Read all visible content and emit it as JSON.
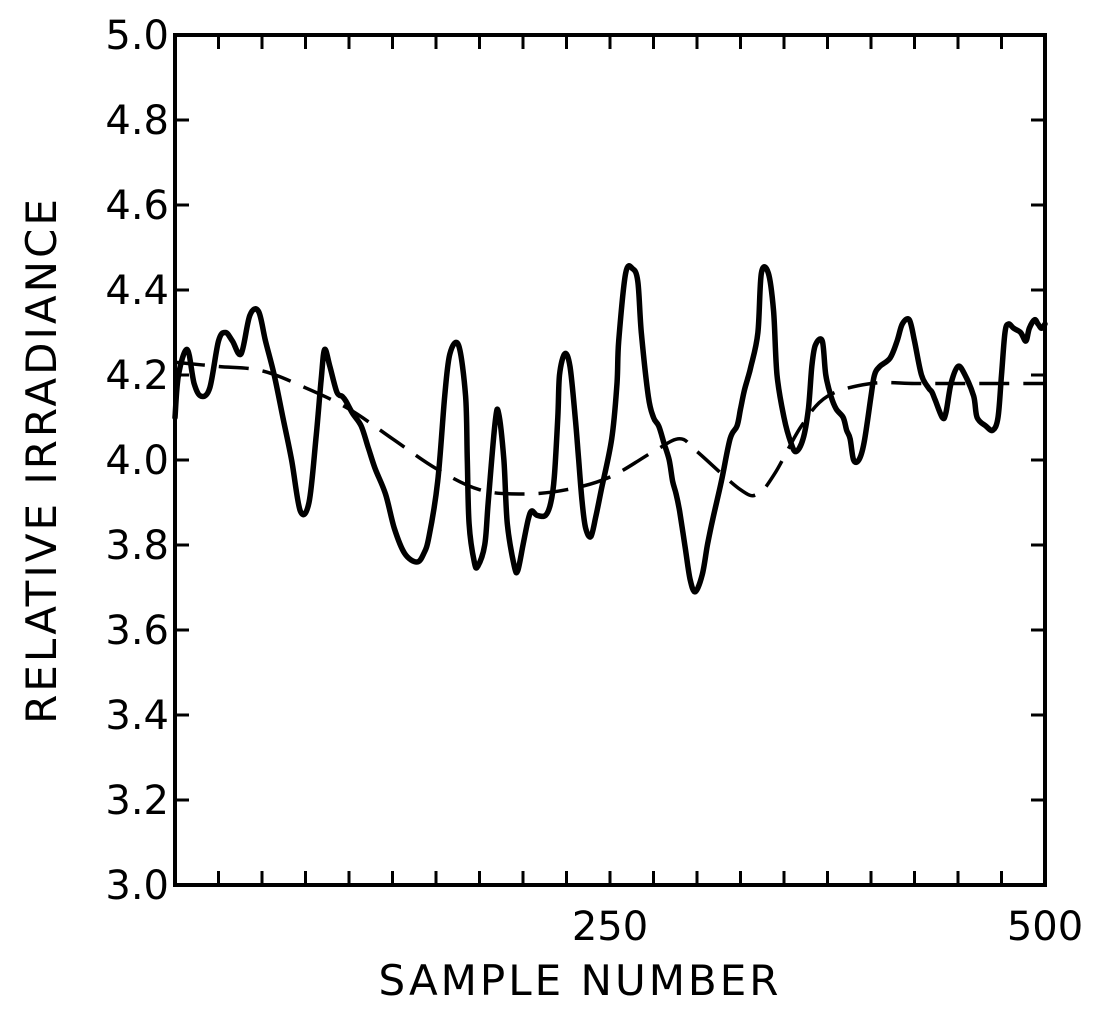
{
  "chart_data": {
    "type": "line",
    "title": "",
    "xlabel": "SAMPLE NUMBER",
    "ylabel": "RELATIVE  IRRADIANCE",
    "xlim": [
      0,
      500
    ],
    "ylim": [
      3.0,
      5.0
    ],
    "x_ticks": [
      0,
      25,
      50,
      75,
      100,
      125,
      150,
      175,
      200,
      225,
      250,
      275,
      300,
      325,
      350,
      375,
      400,
      425,
      450,
      475,
      500
    ],
    "x_tick_labels": [
      {
        "value": 250,
        "label": "250"
      },
      {
        "value": 500,
        "label": "500"
      }
    ],
    "y_ticks": [
      3.0,
      3.2,
      3.4,
      3.6,
      3.8,
      4.0,
      4.2,
      4.4,
      4.6,
      4.8,
      5.0
    ],
    "y_tick_labels": [
      "3.0",
      "3.2",
      "3.4",
      "3.6",
      "3.8",
      "4.0",
      "4.2",
      "4.4",
      "4.6",
      "4.8",
      "5.0"
    ],
    "grid": false,
    "series": [
      {
        "style": "solid",
        "color": "#000000",
        "x": [
          0,
          2,
          7,
          11,
          15,
          20,
          25,
          29,
          33,
          38,
          43,
          48,
          52,
          57,
          62,
          67,
          72,
          77,
          81,
          84,
          86,
          89,
          93,
          96,
          98,
          102,
          107,
          111,
          115,
          121,
          126,
          132,
          139,
          143,
          146,
          151,
          155,
          158,
          163,
          167,
          168,
          169,
          172,
          174,
          178,
          180,
          184,
          186,
          189,
          191,
          195,
          197,
          200,
          203,
          205,
          208,
          213,
          216,
          218,
          220,
          221,
          224,
          227,
          230,
          232,
          234,
          236,
          239,
          242,
          245,
          251,
          254,
          255,
          259,
          263,
          266,
          268,
          272,
          275,
          278,
          281,
          284,
          286,
          288,
          290,
          293,
          296,
          299,
          303,
          306,
          309,
          314,
          319,
          323,
          325,
          327,
          329,
          331,
          335,
          337,
          341,
          344,
          346,
          350,
          354,
          357,
          361,
          364,
          366,
          368,
          372,
          374,
          377,
          380,
          384,
          386,
          388,
          390,
          393,
          396,
          400,
          402,
          405,
          411,
          415,
          418,
          422,
          425,
          429,
          433,
          435,
          437,
          441,
          443,
          446,
          450,
          454,
          459,
          461,
          466,
          470,
          473,
          475,
          477,
          479,
          482,
          486,
          489,
          491,
          494,
          496,
          498,
          500
        ],
        "y": [
          4.1,
          4.2,
          4.26,
          4.18,
          4.15,
          4.17,
          4.28,
          4.3,
          4.28,
          4.25,
          4.34,
          4.35,
          4.28,
          4.2,
          4.1,
          4.0,
          3.88,
          3.9,
          4.05,
          4.19,
          4.26,
          4.22,
          4.16,
          4.15,
          4.14,
          4.11,
          4.08,
          4.03,
          3.98,
          3.92,
          3.84,
          3.78,
          3.76,
          3.78,
          3.82,
          3.95,
          4.15,
          4.25,
          4.27,
          4.15,
          4.0,
          3.85,
          3.76,
          3.75,
          3.8,
          3.9,
          4.09,
          4.11,
          4.0,
          3.85,
          3.75,
          3.74,
          3.8,
          3.86,
          3.88,
          3.87,
          3.87,
          3.9,
          3.96,
          4.1,
          4.2,
          4.25,
          4.22,
          4.1,
          4.0,
          3.9,
          3.84,
          3.82,
          3.87,
          3.93,
          4.05,
          4.18,
          4.28,
          4.44,
          4.45,
          4.42,
          4.3,
          4.15,
          4.1,
          4.08,
          4.04,
          4.0,
          3.95,
          3.92,
          3.88,
          3.8,
          3.72,
          3.69,
          3.73,
          3.8,
          3.86,
          3.95,
          4.05,
          4.08,
          4.12,
          4.16,
          4.19,
          4.22,
          4.3,
          4.44,
          4.44,
          4.35,
          4.2,
          4.1,
          4.04,
          4.02,
          4.05,
          4.12,
          4.22,
          4.27,
          4.28,
          4.2,
          4.15,
          4.12,
          4.1,
          4.07,
          4.05,
          4.0,
          4.0,
          4.04,
          4.15,
          4.2,
          4.22,
          4.24,
          4.28,
          4.32,
          4.33,
          4.28,
          4.2,
          4.17,
          4.16,
          4.14,
          4.1,
          4.11,
          4.18,
          4.22,
          4.2,
          4.15,
          4.1,
          4.08,
          4.07,
          4.1,
          4.2,
          4.3,
          4.32,
          4.31,
          4.3,
          4.28,
          4.31,
          4.33,
          4.32,
          4.31,
          4.32
        ]
      },
      {
        "style": "dashed",
        "color": "#000000",
        "x": [
          0,
          25,
          50,
          75,
          100,
          125,
          150,
          175,
          200,
          225,
          250,
          275,
          290,
          300,
          325,
          335,
          345,
          360,
          375,
          400,
          425,
          450,
          475,
          500
        ],
        "y": [
          4.23,
          4.22,
          4.21,
          4.17,
          4.12,
          4.05,
          3.98,
          3.93,
          3.92,
          3.93,
          3.96,
          4.02,
          4.05,
          4.02,
          3.93,
          3.92,
          3.97,
          4.08,
          4.15,
          4.18,
          4.18,
          4.18,
          4.18,
          4.18
        ]
      }
    ]
  }
}
